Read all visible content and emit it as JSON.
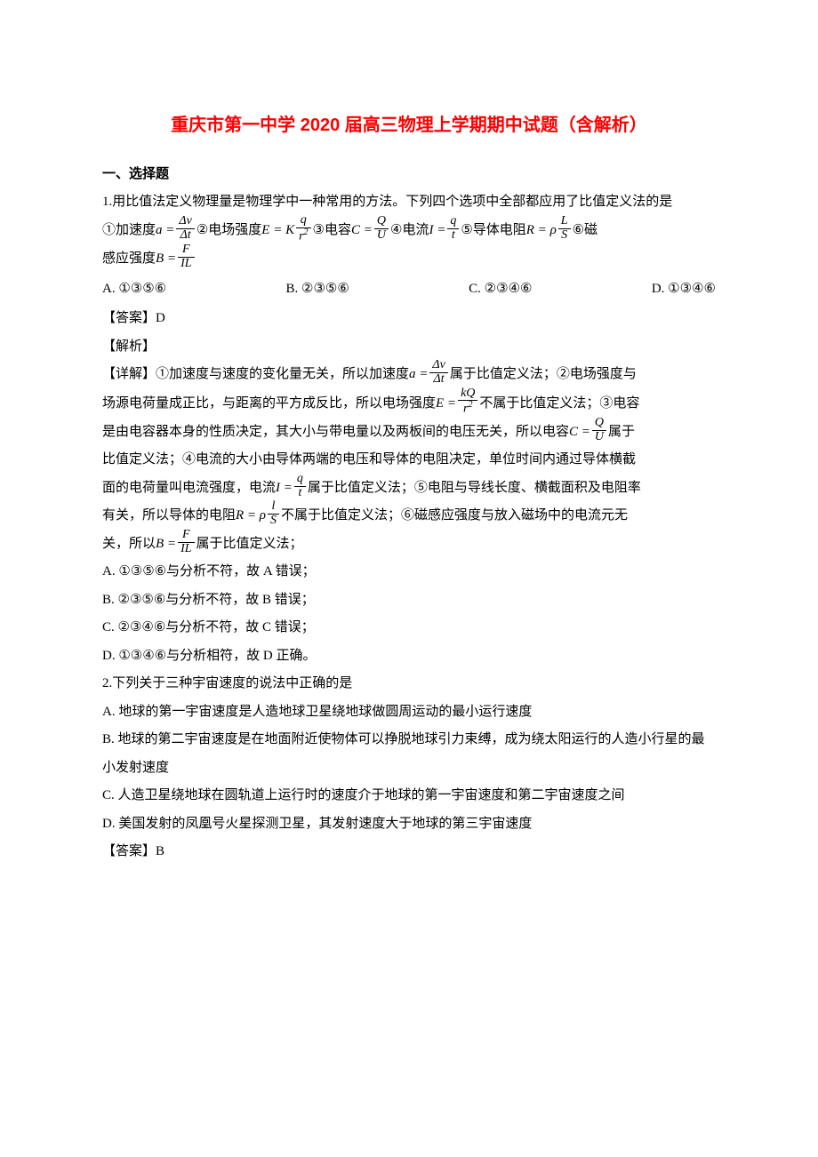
{
  "title": "重庆市第一中学 2020 届高三物理上学期期中试题（含解析）",
  "section1": "一、选择题",
  "q1": {
    "stem1": "1.用比值法定义物理量是物理学中一种常用的方法。下列四个选项中全部都应用了比值定义法的是",
    "line2_pre": "①加速度",
    "line2_p1a": "a =",
    "line2_p1_num": "Δv",
    "line2_p1_den": "Δt",
    "line2_p2_txt": "②电场强度",
    "line2_p2a": "E = K",
    "line2_p2_num": "q",
    "line2_p2_den": "r",
    "line2_p3_txt": "③电容",
    "line2_p3a": "C =",
    "line2_p3_num": "Q",
    "line2_p3_den": "U",
    "line2_p4_txt": "④电流",
    "line2_p4a": "I =",
    "line2_p4_num": "q",
    "line2_p4_den": "t",
    "line2_p5_txt": "⑤导体电阻",
    "line2_p5a": "R = ρ",
    "line2_p5_num": "L",
    "line2_p5_den": "S",
    "line2_p6_txt": "⑥磁",
    "line3_pre": "感应强度",
    "line3_a": "B =",
    "line3_num": "F",
    "line3_den": "IL",
    "optA": "A. ①③⑤⑥",
    "optB": "B. ②③⑤⑥",
    "optC": "C. ②③④⑥",
    "optD": "D. ①③④⑥",
    "ans": "【答案】D",
    "jiexi": "【解析】",
    "d1a": "【详解】①加速度与速度的变化量无关，所以加速度",
    "d1b": "a =",
    "d1_num": "Δv",
    "d1_den": "Δt",
    "d1c": "属于比值定义法；②电场强度与",
    "d2a": "场源电荷量成正比，与距离的平方成反比，所以电场强度",
    "d2b": "E =",
    "d2_num": "kQ",
    "d2_den": "r",
    "d2c": "不属于比值定义法；③电容",
    "d3a": "是由电容器本身的性质决定，其大小与带电量以及两板间的电压无关，所以电容",
    "d3b": "C =",
    "d3_num": "Q",
    "d3_den": "U",
    "d3c": "属于",
    "d4": "比值定义法；④电流的大小由导体两端的电压和导体的电阻决定，单位时间内通过导体横截",
    "d5a": "面的电荷量叫电流强度，电流",
    "d5b": "I =",
    "d5_num": "q",
    "d5_den": "t",
    "d5c": "属于比值定义法；⑤电阻与导线长度、横截面积及电阻率",
    "d6a": "有关，所以导体的电阻",
    "d6b": "R = ρ",
    "d6_num": "l",
    "d6_den": "S",
    "d6c": "不属于比值定义法；⑥磁感应强度与放入磁场中的电流元无",
    "d7a": "关，所以",
    "d7b": "B =",
    "d7_num": "F",
    "d7_den": "IL",
    "d7c": "属于比值定义法；",
    "concA": "A. ①③⑤⑥与分析不符，故 A 错误；",
    "concB": "B. ②③⑤⑥与分析不符，故 B 错误；",
    "concC": "C. ②③④⑥与分析不符，故 C 错误；",
    "concD": "D. ①③④⑥与分析相符，故 D 正确。"
  },
  "q2": {
    "stem": "2.下列关于三种宇宙速度的说法中正确的是",
    "A": "A. 地球的第一宇宙速度是人造地球卫星绕地球做圆周运动的最小运行速度",
    "B": "B. 地球的第二宇宙速度是在地面附近使物体可以挣脱地球引力束缚，成为绕太阳运行的人造小行星的最小发射速度",
    "C": "C. 人造卫星绕地球在圆轨道上运行时的速度介于地球的第一宇宙速度和第二宇宙速度之间",
    "D": "D. 美国发射的凤凰号火星探测卫星，其发射速度大于地球的第三宇宙速度",
    "ans": "【答案】B"
  }
}
